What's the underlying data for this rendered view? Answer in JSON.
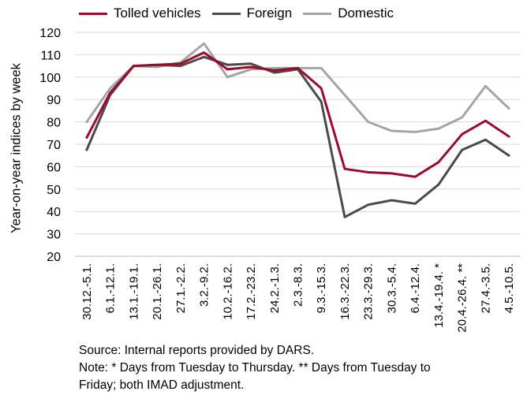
{
  "chart_data": {
    "type": "line",
    "title": "",
    "xlabel": "",
    "ylabel": "Year-on-year indices by week",
    "ylim": [
      20,
      120
    ],
    "yticks": [
      20,
      30,
      40,
      50,
      60,
      70,
      80,
      90,
      100,
      110,
      120
    ],
    "grid": "horizontal",
    "legend_position": "top",
    "categories": [
      "30.12.-5.1.",
      "6.1.-12.1.",
      "13.1.-19.1.",
      "20.1.-26.1.",
      "27.1.-2.2.",
      "3.2.-9.2.",
      "10.2.-16.2.",
      "17.2.-23.2.",
      "24.2.-1.3.",
      "2.3.-8.3.",
      "9.3.-15.3.",
      "16.3.-22.3.",
      "23.3.-29.3.",
      "30.3.-5.4.",
      "6.4.-12.4.",
      "13.4.-19.4. *",
      "20.4.-26.4. **",
      "27.4.-3.5.",
      "4.5.-10.5."
    ],
    "series": [
      {
        "name": "Tolled vehicles",
        "color": "#9b0b2a",
        "values": [
          73,
          93,
          105,
          105.5,
          106,
          111,
          103.5,
          104.5,
          103,
          104,
          95,
          59,
          57.5,
          57,
          55.5,
          62,
          74.5,
          80.5,
          73.5
        ]
      },
      {
        "name": "Foreign",
        "color": "#4a4a4a",
        "values": [
          67.5,
          92,
          105,
          105.5,
          105,
          109,
          105.5,
          106,
          102,
          103.5,
          89,
          37.5,
          43,
          45,
          43.5,
          52,
          67.5,
          72,
          65
        ]
      },
      {
        "name": "Domestic",
        "color": "#a5a5a5",
        "values": [
          80,
          95,
          105,
          104.5,
          106.5,
          115,
          100,
          103.5,
          104,
          104,
          104,
          92,
          80,
          76,
          75.5,
          77,
          82,
          96,
          86
        ]
      }
    ]
  },
  "notes": {
    "source": "Source: Internal reports provided by DARS.",
    "note_line1": "Note: * Days from Tuesday to Thursday. ** Days from Tuesday to",
    "note_line2": "Friday; both IMAD adjustment."
  }
}
